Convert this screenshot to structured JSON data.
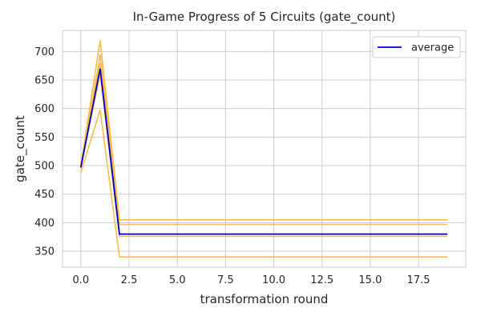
{
  "chart_data": {
    "type": "line",
    "title": "In-Game Progress of 5 Circuits (gate_count)",
    "xlabel": "transformation round",
    "ylabel": "gate_count",
    "xlim": [
      -0.95,
      19.95
    ],
    "ylim": [
      322,
      737
    ],
    "xticks": [
      0.0,
      2.5,
      5.0,
      7.5,
      10.0,
      12.5,
      15.0,
      17.5
    ],
    "xtick_labels": [
      "0.0",
      "2.5",
      "5.0",
      "7.5",
      "10.0",
      "12.5",
      "15.0",
      "17.5"
    ],
    "yticks": [
      350,
      400,
      450,
      500,
      550,
      600,
      650,
      700
    ],
    "ytick_labels": [
      "350",
      "400",
      "450",
      "500",
      "550",
      "600",
      "650",
      "700"
    ],
    "grid": true,
    "legend_position": "top-right",
    "x": [
      0,
      1,
      2,
      3,
      4,
      5,
      6,
      7,
      8,
      9,
      10,
      11,
      12,
      13,
      14,
      15,
      16,
      17,
      18,
      19
    ],
    "series": [
      {
        "values": [
          500,
          720,
          405,
          405,
          405,
          405,
          405,
          405,
          405,
          405,
          405,
          405,
          405,
          405,
          405,
          405,
          405,
          405,
          405,
          405
        ],
        "color": "#f5b73b"
      },
      {
        "values": [
          495,
          695,
          397,
          397,
          397,
          397,
          397,
          397,
          397,
          397,
          397,
          397,
          397,
          397,
          397,
          397,
          397,
          397,
          397,
          397
        ],
        "color": "#f5b73b"
      },
      {
        "values": [
          502,
          680,
          380,
          380,
          380,
          380,
          380,
          380,
          380,
          380,
          380,
          380,
          380,
          380,
          380,
          380,
          380,
          380,
          380,
          380
        ],
        "color": "#f5b73b"
      },
      {
        "values": [
          498,
          660,
          376,
          376,
          376,
          376,
          376,
          376,
          376,
          376,
          376,
          376,
          376,
          376,
          376,
          376,
          376,
          376,
          376,
          376
        ],
        "color": "#f5b73b"
      },
      {
        "values": [
          488,
          598,
          340,
          340,
          340,
          340,
          340,
          340,
          340,
          340,
          340,
          340,
          340,
          340,
          340,
          340,
          340,
          340,
          340,
          340
        ],
        "color": "#f5b73b"
      },
      {
        "name": "average",
        "values": [
          497,
          670,
          380,
          380,
          380,
          380,
          380,
          380,
          380,
          380,
          380,
          380,
          380,
          380,
          380,
          380,
          380,
          380,
          380,
          380
        ],
        "color": "#0000cc"
      }
    ]
  }
}
